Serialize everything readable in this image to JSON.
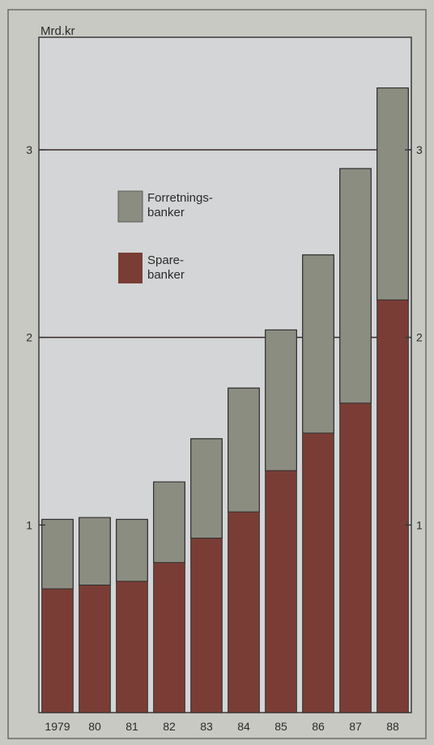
{
  "chart_data": {
    "type": "bar",
    "stacked": true,
    "unit_label": "Mrd.kr",
    "categories": [
      "1979",
      "80",
      "81",
      "82",
      "83",
      "84",
      "85",
      "86",
      "87",
      "88"
    ],
    "series": [
      {
        "name": "Sparebanker",
        "legend_lines": [
          "Spare-",
          "banker"
        ],
        "color": "#7a3d35",
        "values": [
          0.66,
          0.68,
          0.7,
          0.8,
          0.93,
          1.07,
          1.29,
          1.49,
          1.65,
          2.2
        ]
      },
      {
        "name": "Forretningsbanker",
        "legend_lines": [
          "Forretnings-",
          "banker"
        ],
        "color": "#8c8d81",
        "values": [
          0.37,
          0.36,
          0.33,
          0.43,
          0.53,
          0.66,
          0.75,
          0.95,
          1.25,
          1.13
        ]
      }
    ],
    "ylim": [
      0,
      3.6
    ],
    "yticks": [
      1,
      2,
      3
    ],
    "gridlines": [
      2,
      3
    ],
    "legend_position": "upper-left",
    "colors": {
      "background": "#c9c9c4",
      "plot_background": "#d3d5d6",
      "axis": "#3a3a3a",
      "gridline": "#3a2a28"
    }
  }
}
